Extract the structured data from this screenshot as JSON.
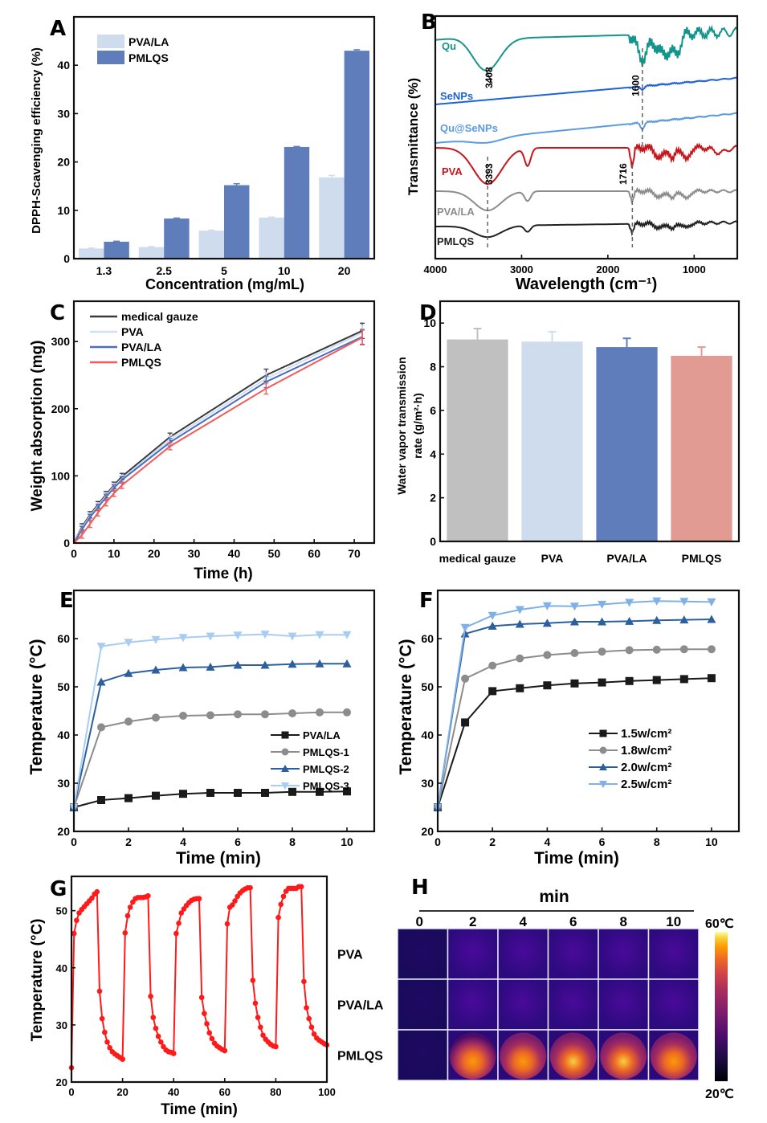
{
  "chart_data": [
    {
      "id": "A",
      "type": "bar",
      "panel_label": "A",
      "title": "",
      "xlabel": "Concentration (mg/mL)",
      "ylabel": "DPPH-Scavenging efficiency (%)",
      "categories": [
        "1.3",
        "2.5",
        "5",
        "10",
        "20"
      ],
      "series": [
        {
          "name": "PVA/LA",
          "color": "#cfdcee",
          "values": [
            2.1,
            2.4,
            5.8,
            8.5,
            16.8
          ],
          "errors": [
            0.1,
            0.1,
            0.1,
            0.1,
            0.4
          ]
        },
        {
          "name": "PMLQS",
          "color": "#5f7dbb",
          "values": [
            3.5,
            8.3,
            15.2,
            23.1,
            43.0
          ],
          "errors": [
            0.1,
            0.1,
            0.3,
            0.1,
            0.2
          ]
        }
      ],
      "ylim": [
        0,
        50
      ],
      "yticks": [
        0,
        10,
        20,
        30,
        40
      ],
      "grid": false,
      "legend": "top-left"
    },
    {
      "id": "B",
      "type": "line",
      "panel_label": "B",
      "title": "",
      "xlabel": "Wavelength (cm⁻¹)",
      "ylabel": "Transmittance (%)",
      "xlim": [
        4000,
        500
      ],
      "xticks": [
        4000,
        3000,
        2000,
        1000
      ],
      "yticks_shown": false,
      "series": [
        {
          "name": "Qu",
          "color": "#14958c"
        },
        {
          "name": "SeNPs",
          "color": "#1f62d8"
        },
        {
          "name": "Qu@SeNPs",
          "color": "#5b9ae0"
        },
        {
          "name": "PVA",
          "color": "#c4161c"
        },
        {
          "name": "PVA/LA",
          "color": "#8c8c8c"
        },
        {
          "name": "PMLQS",
          "color": "#222222"
        }
      ],
      "annotations": [
        "3408",
        "1600",
        "3393",
        "1716"
      ],
      "reference_lines": [
        3408,
        1600,
        3393,
        1716
      ],
      "legend": "inline-labels"
    },
    {
      "id": "C",
      "type": "line",
      "panel_label": "C",
      "title": "",
      "xlabel": "Time (h)",
      "ylabel": "Weight absorption (mg)",
      "x": [
        0,
        2,
        4,
        6,
        8,
        10,
        12,
        24,
        48,
        72
      ],
      "xlim": [
        0,
        75
      ],
      "xticks": [
        0,
        10,
        20,
        30,
        40,
        50,
        60,
        70
      ],
      "ylim": [
        0,
        360
      ],
      "yticks": [
        0,
        100,
        200,
        300
      ],
      "series": [
        {
          "name": "medical gauze",
          "color": "#3a3a3a",
          "values": [
            0,
            24,
            42,
            57,
            72,
            86,
            99,
            158,
            250,
            316
          ]
        },
        {
          "name": "PVA",
          "color": "#cfe0f3",
          "values": [
            0,
            22,
            40,
            55,
            70,
            84,
            96,
            154,
            245,
            313
          ]
        },
        {
          "name": "PVA/LA",
          "color": "#4b6fc0",
          "values": [
            0,
            20,
            38,
            53,
            68,
            82,
            94,
            150,
            240,
            307
          ]
        },
        {
          "name": "PMLQS",
          "color": "#f25a5a",
          "values": [
            0,
            12,
            28,
            45,
            60,
            74,
            86,
            144,
            230,
            306
          ]
        }
      ],
      "grid": false,
      "legend": "top-left"
    },
    {
      "id": "D",
      "type": "bar",
      "panel_label": "D",
      "title": "",
      "xlabel": "",
      "ylabel": "Water vapor transmission rate (g/m²·h)",
      "categories": [
        "medical gauze",
        "PVA",
        "PVA/LA",
        "PMLQS"
      ],
      "values": [
        9.25,
        9.15,
        8.9,
        8.5
      ],
      "errors": [
        0.5,
        0.45,
        0.4,
        0.4
      ],
      "colors": [
        "#c0c0c0",
        "#cfdcee",
        "#5f7dbb",
        "#e29b92"
      ],
      "ylim": [
        0,
        11
      ],
      "yticks": [
        0,
        2,
        4,
        6,
        8,
        10
      ],
      "grid": false
    },
    {
      "id": "E",
      "type": "line",
      "panel_label": "E",
      "title": "",
      "xlabel": "Time (min)",
      "ylabel": "Temperature (°C)",
      "x": [
        0,
        1,
        2,
        3,
        4,
        5,
        6,
        7,
        8,
        9,
        10
      ],
      "xlim": [
        0,
        11
      ],
      "xticks": [
        0,
        2,
        4,
        6,
        8,
        10
      ],
      "ylim": [
        20,
        70
      ],
      "yticks": [
        20,
        30,
        40,
        50,
        60
      ],
      "series": [
        {
          "name": "PVA/LA",
          "color": "#1a1a1a",
          "marker": "square",
          "values": [
            25,
            26.5,
            26.9,
            27.4,
            27.8,
            28.0,
            28.0,
            28.0,
            28.2,
            28.2,
            28.3
          ]
        },
        {
          "name": "PMLQS-1",
          "color": "#8c8c8c",
          "marker": "circle",
          "values": [
            25,
            41.6,
            42.8,
            43.6,
            44.0,
            44.1,
            44.3,
            44.3,
            44.5,
            44.7,
            44.7
          ]
        },
        {
          "name": "PMLQS-2",
          "color": "#2c5f9e",
          "marker": "triangle-up",
          "values": [
            25,
            51.0,
            52.8,
            53.5,
            54.0,
            54.1,
            54.5,
            54.5,
            54.7,
            54.8,
            54.8
          ]
        },
        {
          "name": "PMLQS-3",
          "color": "#a9cdf2",
          "marker": "triangle-down",
          "values": [
            25,
            58.4,
            59.2,
            59.8,
            60.2,
            60.5,
            60.7,
            60.9,
            60.5,
            60.8,
            60.8
          ]
        }
      ],
      "grid": false,
      "legend": "bottom-right"
    },
    {
      "id": "F",
      "type": "line",
      "panel_label": "F",
      "title": "",
      "xlabel": "Time (min)",
      "ylabel": "Temperature (°C)",
      "x": [
        0,
        1,
        2,
        3,
        4,
        5,
        6,
        7,
        8,
        9,
        10
      ],
      "xlim": [
        0,
        11
      ],
      "xticks": [
        0,
        2,
        4,
        6,
        8,
        10
      ],
      "ylim": [
        20,
        70
      ],
      "yticks": [
        20,
        30,
        40,
        50,
        60
      ],
      "series": [
        {
          "name": "1.5w/cm²",
          "color": "#1a1a1a",
          "marker": "square",
          "values": [
            25,
            42.6,
            49.1,
            49.7,
            50.3,
            50.7,
            50.9,
            51.2,
            51.4,
            51.6,
            51.8
          ]
        },
        {
          "name": "1.8w/cm²",
          "color": "#8c8c8c",
          "marker": "circle",
          "values": [
            25,
            51.7,
            54.4,
            55.9,
            56.6,
            57.0,
            57.3,
            57.6,
            57.7,
            57.8,
            57.8
          ]
        },
        {
          "name": "2.0w/cm²",
          "color": "#2c5f9e",
          "marker": "triangle-up",
          "values": [
            25,
            61.0,
            62.6,
            63.0,
            63.2,
            63.5,
            63.5,
            63.6,
            63.8,
            63.9,
            64.0
          ]
        },
        {
          "name": "2.5w/cm²",
          "color": "#7fb0e6",
          "marker": "triangle-down",
          "values": [
            25,
            62.3,
            64.8,
            66.0,
            66.8,
            66.7,
            67.1,
            67.5,
            67.8,
            67.7,
            67.6
          ]
        }
      ],
      "grid": false,
      "legend": "bottom-right"
    },
    {
      "id": "G",
      "type": "line",
      "panel_label": "G",
      "title": "",
      "xlabel": "Time (min)",
      "ylabel": "Temperature (°C)",
      "xlim": [
        0,
        100
      ],
      "xticks": [
        0,
        20,
        40,
        60,
        80,
        100
      ],
      "ylim": [
        20,
        56
      ],
      "yticks": [
        20,
        30,
        40,
        50
      ],
      "series": [
        {
          "name": "PMLQS cycling",
          "color": "#ff1a1a",
          "cycles": [
            {
              "on_start": 0,
              "start_temp": 22.5,
              "heat": [
                46.0,
                48.3,
                49.6,
                50.2,
                50.7,
                51.2,
                51.7,
                52.2,
                52.9,
                53.3
              ],
              "cool": [
                35.9,
                31.1,
                28.7,
                27.0,
                26.0,
                25.3,
                24.9,
                24.6,
                24.3,
                24.0
              ]
            },
            {
              "on_start": 20,
              "start_temp": 24.0,
              "heat": [
                46.1,
                49.1,
                50.6,
                51.5,
                52.1,
                52.3,
                52.3,
                52.3,
                52.4,
                52.6
              ],
              "cool": [
                35.0,
                31.3,
                29.4,
                28.0,
                27.0,
                26.2,
                25.6,
                25.3,
                25.2,
                25.0
              ]
            },
            {
              "on_start": 40,
              "start_temp": 25.0,
              "heat": [
                46.0,
                47.8,
                49.6,
                50.3,
                50.9,
                51.4,
                51.8,
                52.0,
                52.1,
                52.1
              ],
              "cool": [
                34.8,
                32.0,
                30.2,
                28.6,
                27.6,
                26.8,
                26.3,
                26.0,
                25.7,
                25.5
              ]
            },
            {
              "on_start": 60,
              "start_temp": 25.5,
              "heat": [
                47.7,
                50.6,
                51.0,
                51.7,
                52.5,
                53.1,
                53.5,
                53.8,
                54.0,
                54.0
              ],
              "cool": [
                37.8,
                33.8,
                31.3,
                29.6,
                28.2,
                27.5,
                27.0,
                26.6,
                26.3,
                26.2
              ]
            },
            {
              "on_start": 80,
              "start_temp": 26.2,
              "heat": [
                48.8,
                51.1,
                52.5,
                53.4,
                53.9,
                53.9,
                53.9,
                53.9,
                54.2,
                54.2
              ],
              "cool": [
                37.6,
                33.0,
                31.1,
                29.6,
                28.4,
                27.7,
                27.3,
                27.0,
                26.7,
                26.5
              ]
            }
          ]
        }
      ],
      "grid": false
    },
    {
      "id": "H",
      "type": "heatmap",
      "panel_label": "H",
      "title": "min",
      "columns": [
        "0",
        "2",
        "4",
        "6",
        "8",
        "10"
      ],
      "rows": [
        "PVA",
        "PVA/LA",
        "PMLQS"
      ],
      "intensity": [
        [
          0.05,
          0.18,
          0.2,
          0.21,
          0.21,
          0.2
        ],
        [
          0.05,
          0.17,
          0.2,
          0.21,
          0.21,
          0.21
        ],
        [
          0.05,
          0.85,
          0.9,
          0.93,
          0.93,
          0.9
        ]
      ],
      "colorbar": {
        "max_label": "60℃",
        "min_label": "20℃",
        "range": [
          20,
          60
        ]
      }
    }
  ]
}
